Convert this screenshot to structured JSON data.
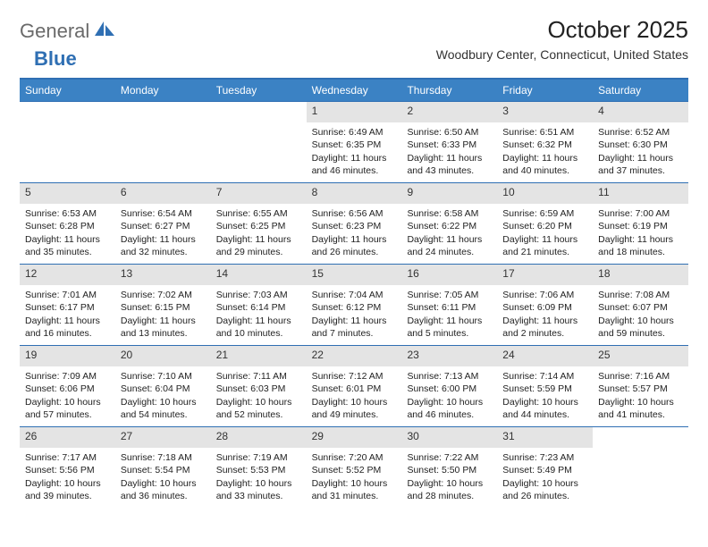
{
  "logo": {
    "text1": "General",
    "text2": "Blue"
  },
  "title": "October 2025",
  "location": "Woodbury Center, Connecticut, United States",
  "colors": {
    "header_bar": "#3b82c4",
    "border": "#2f6fb3",
    "daynum_bg": "#e4e4e4",
    "text": "#222222",
    "bg": "#ffffff"
  },
  "daysOfWeek": [
    "Sunday",
    "Monday",
    "Tuesday",
    "Wednesday",
    "Thursday",
    "Friday",
    "Saturday"
  ],
  "weeks": [
    [
      {
        "empty": true
      },
      {
        "empty": true
      },
      {
        "empty": true
      },
      {
        "n": "1",
        "sr": "Sunrise: 6:49 AM",
        "ss": "Sunset: 6:35 PM",
        "dl": "Daylight: 11 hours and 46 minutes."
      },
      {
        "n": "2",
        "sr": "Sunrise: 6:50 AM",
        "ss": "Sunset: 6:33 PM",
        "dl": "Daylight: 11 hours and 43 minutes."
      },
      {
        "n": "3",
        "sr": "Sunrise: 6:51 AM",
        "ss": "Sunset: 6:32 PM",
        "dl": "Daylight: 11 hours and 40 minutes."
      },
      {
        "n": "4",
        "sr": "Sunrise: 6:52 AM",
        "ss": "Sunset: 6:30 PM",
        "dl": "Daylight: 11 hours and 37 minutes."
      }
    ],
    [
      {
        "n": "5",
        "sr": "Sunrise: 6:53 AM",
        "ss": "Sunset: 6:28 PM",
        "dl": "Daylight: 11 hours and 35 minutes."
      },
      {
        "n": "6",
        "sr": "Sunrise: 6:54 AM",
        "ss": "Sunset: 6:27 PM",
        "dl": "Daylight: 11 hours and 32 minutes."
      },
      {
        "n": "7",
        "sr": "Sunrise: 6:55 AM",
        "ss": "Sunset: 6:25 PM",
        "dl": "Daylight: 11 hours and 29 minutes."
      },
      {
        "n": "8",
        "sr": "Sunrise: 6:56 AM",
        "ss": "Sunset: 6:23 PM",
        "dl": "Daylight: 11 hours and 26 minutes."
      },
      {
        "n": "9",
        "sr": "Sunrise: 6:58 AM",
        "ss": "Sunset: 6:22 PM",
        "dl": "Daylight: 11 hours and 24 minutes."
      },
      {
        "n": "10",
        "sr": "Sunrise: 6:59 AM",
        "ss": "Sunset: 6:20 PM",
        "dl": "Daylight: 11 hours and 21 minutes."
      },
      {
        "n": "11",
        "sr": "Sunrise: 7:00 AM",
        "ss": "Sunset: 6:19 PM",
        "dl": "Daylight: 11 hours and 18 minutes."
      }
    ],
    [
      {
        "n": "12",
        "sr": "Sunrise: 7:01 AM",
        "ss": "Sunset: 6:17 PM",
        "dl": "Daylight: 11 hours and 16 minutes."
      },
      {
        "n": "13",
        "sr": "Sunrise: 7:02 AM",
        "ss": "Sunset: 6:15 PM",
        "dl": "Daylight: 11 hours and 13 minutes."
      },
      {
        "n": "14",
        "sr": "Sunrise: 7:03 AM",
        "ss": "Sunset: 6:14 PM",
        "dl": "Daylight: 11 hours and 10 minutes."
      },
      {
        "n": "15",
        "sr": "Sunrise: 7:04 AM",
        "ss": "Sunset: 6:12 PM",
        "dl": "Daylight: 11 hours and 7 minutes."
      },
      {
        "n": "16",
        "sr": "Sunrise: 7:05 AM",
        "ss": "Sunset: 6:11 PM",
        "dl": "Daylight: 11 hours and 5 minutes."
      },
      {
        "n": "17",
        "sr": "Sunrise: 7:06 AM",
        "ss": "Sunset: 6:09 PM",
        "dl": "Daylight: 11 hours and 2 minutes."
      },
      {
        "n": "18",
        "sr": "Sunrise: 7:08 AM",
        "ss": "Sunset: 6:07 PM",
        "dl": "Daylight: 10 hours and 59 minutes."
      }
    ],
    [
      {
        "n": "19",
        "sr": "Sunrise: 7:09 AM",
        "ss": "Sunset: 6:06 PM",
        "dl": "Daylight: 10 hours and 57 minutes."
      },
      {
        "n": "20",
        "sr": "Sunrise: 7:10 AM",
        "ss": "Sunset: 6:04 PM",
        "dl": "Daylight: 10 hours and 54 minutes."
      },
      {
        "n": "21",
        "sr": "Sunrise: 7:11 AM",
        "ss": "Sunset: 6:03 PM",
        "dl": "Daylight: 10 hours and 52 minutes."
      },
      {
        "n": "22",
        "sr": "Sunrise: 7:12 AM",
        "ss": "Sunset: 6:01 PM",
        "dl": "Daylight: 10 hours and 49 minutes."
      },
      {
        "n": "23",
        "sr": "Sunrise: 7:13 AM",
        "ss": "Sunset: 6:00 PM",
        "dl": "Daylight: 10 hours and 46 minutes."
      },
      {
        "n": "24",
        "sr": "Sunrise: 7:14 AM",
        "ss": "Sunset: 5:59 PM",
        "dl": "Daylight: 10 hours and 44 minutes."
      },
      {
        "n": "25",
        "sr": "Sunrise: 7:16 AM",
        "ss": "Sunset: 5:57 PM",
        "dl": "Daylight: 10 hours and 41 minutes."
      }
    ],
    [
      {
        "n": "26",
        "sr": "Sunrise: 7:17 AM",
        "ss": "Sunset: 5:56 PM",
        "dl": "Daylight: 10 hours and 39 minutes."
      },
      {
        "n": "27",
        "sr": "Sunrise: 7:18 AM",
        "ss": "Sunset: 5:54 PM",
        "dl": "Daylight: 10 hours and 36 minutes."
      },
      {
        "n": "28",
        "sr": "Sunrise: 7:19 AM",
        "ss": "Sunset: 5:53 PM",
        "dl": "Daylight: 10 hours and 33 minutes."
      },
      {
        "n": "29",
        "sr": "Sunrise: 7:20 AM",
        "ss": "Sunset: 5:52 PM",
        "dl": "Daylight: 10 hours and 31 minutes."
      },
      {
        "n": "30",
        "sr": "Sunrise: 7:22 AM",
        "ss": "Sunset: 5:50 PM",
        "dl": "Daylight: 10 hours and 28 minutes."
      },
      {
        "n": "31",
        "sr": "Sunrise: 7:23 AM",
        "ss": "Sunset: 5:49 PM",
        "dl": "Daylight: 10 hours and 26 minutes."
      },
      {
        "empty": true
      }
    ]
  ]
}
